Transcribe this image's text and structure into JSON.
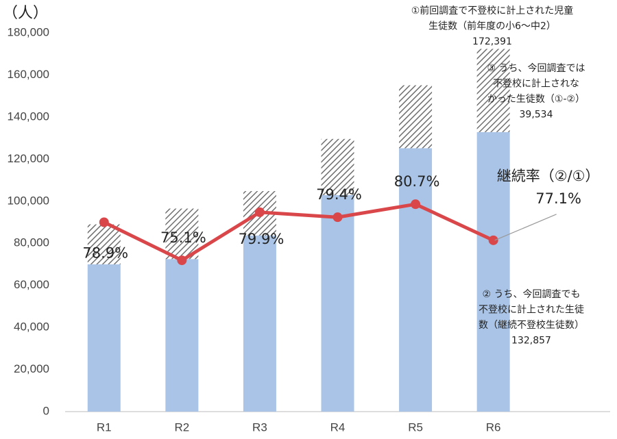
{
  "chart_data": {
    "type": "bar",
    "unit_label": "（人）",
    "categories": [
      "R1",
      "R2",
      "R3",
      "R4",
      "R5",
      "R6",
      null
    ],
    "series": [
      {
        "color": "#a9c4e6",
        "values": [
          70000,
          72500,
          83700,
          102900,
          125200,
          132857,
          null
        ]
      },
      {
        "color": "#7f7f7f",
        "pattern": "hatch",
        "values": [
          19000,
          24000,
          21100,
          26700,
          29900,
          39534,
          null
        ]
      },
      {
        "type": "line",
        "axis": "y2",
        "color": "#d9474a",
        "values": [
          78.9,
          75.1,
          79.9,
          79.4,
          80.7,
          77.1,
          null
        ],
        "value_labels": [
          "78.9%",
          "75.1%",
          "79.9%",
          "79.4%",
          "80.7%",
          "77.1%",
          null
        ]
      }
    ],
    "ylim": [
      0,
      180000
    ],
    "yticks": [
      0,
      {
        "value": 20000,
        "label": "20,000"
      },
      {
        "value": 40000,
        "label": "40,000"
      },
      {
        "value": 60000,
        "label": "60,000"
      },
      {
        "value": 80000,
        "label": "80,000"
      },
      {
        "value": 100000,
        "label": "100,000"
      },
      {
        "value": 120000,
        "label": "120,000"
      },
      {
        "value": 140000,
        "label": "140,000"
      },
      {
        "value": 160000,
        "label": "160,000"
      },
      {
        "value": 180000,
        "label": "180,000"
      }
    ],
    "y2lim": [
      60,
      97.8
    ],
    "rate_title": "継続率（②/①）",
    "annotations": [
      {
        "lines": [
          "①前回調査で不登校に計上された児童",
          "生徒数（前年度の小6～中2）",
          "172,391"
        ]
      },
      {
        "lines": [
          "③ うち、今回調査では",
          "不登校に計上されな",
          "かった生徒数（①-②）",
          "39,534"
        ]
      },
      {
        "lines": [
          "② うち、今回調査でも",
          "不登校に計上された生徒",
          "数（継続不登校生徒数）",
          "132,857"
        ]
      }
    ]
  }
}
